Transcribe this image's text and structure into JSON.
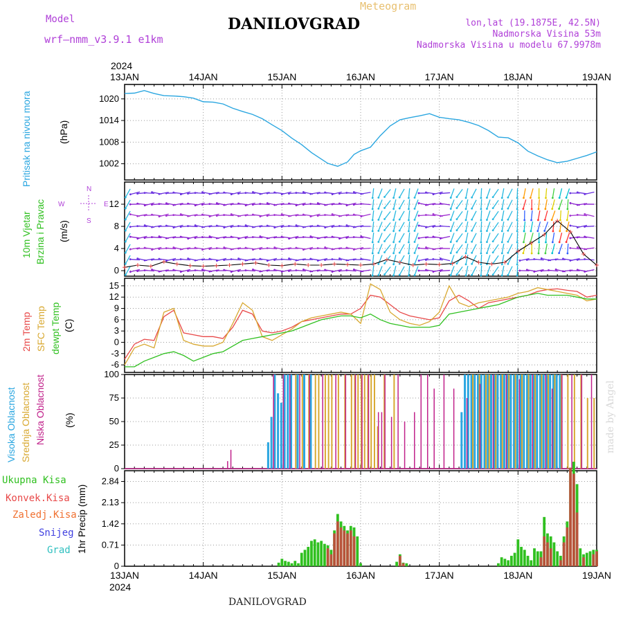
{
  "header": {
    "model_label": "Model",
    "model_name": "wrf–nmm_v3.9.1  e1km",
    "meteogram_label": "Meteogram",
    "location": "DANILOVGRAD",
    "lonlat": "lon,lat (19.1875E, 42.5N)",
    "elevation": "Nadmorska Visina 53m",
    "model_elevation": "Nadmorska Visina u modelu 67.9978m"
  },
  "date_axis": {
    "year": "2024",
    "labels": [
      "13JAN",
      "14JAN",
      "15JAN",
      "16JAN",
      "17JAN",
      "18JAN",
      "19JAN"
    ]
  },
  "footer": {
    "station": "DANILOVGRAD",
    "credit": "made by Angel"
  },
  "panels": {
    "pressure": {
      "title": "Pritisak na nivou mora",
      "unit": "(hPa)"
    },
    "wind": {
      "title1": "10m Vjetar",
      "title2": "Brzina i Pravac",
      "unit": "(m/s)",
      "compass": {
        "n": "N",
        "s": "S",
        "w": "W",
        "e": "E"
      }
    },
    "temp": {
      "label_2m": "2m Temp",
      "label_sfc": "SFC Temp",
      "label_dew": "dewpt Temp",
      "unit": "(C)"
    },
    "cloud": {
      "label_high": "Visoka Oblacnost",
      "label_mid": "Srednja Oblacnost",
      "label_low": "Niska Oblacnost",
      "unit": "(%)"
    },
    "precip": {
      "label_total": "Ukupna Kisa",
      "label_conv": "Konvek.Kisa",
      "label_frz": "Zaledj.Kisa",
      "label_snow": "Snijeg",
      "label_grad": "Grad",
      "ylabel": "1hr Precip (mm)"
    }
  },
  "colors": {
    "pressure": "#2aa6e0",
    "t2m": "#e84848",
    "tsfc": "#d8a830",
    "tdew": "#30c020",
    "cloud_high": "#2aa6e0",
    "cloud_mid": "#d8a830",
    "cloud_low": "#c0208a",
    "precip_total": "#30c020",
    "precip_conv": "#d04040"
  },
  "chart_data": [
    {
      "type": "line",
      "name": "Sea level pressure",
      "xlim": [
        0,
        144
      ],
      "ylim": [
        997.5,
        1024
      ],
      "yticks": [
        1002,
        1008,
        1014,
        1020
      ],
      "x": [
        0,
        3,
        6,
        9,
        12,
        15,
        18,
        21,
        24,
        27,
        30,
        33,
        36,
        39,
        42,
        45,
        48,
        51,
        54,
        57,
        60,
        62,
        65,
        68,
        70,
        72,
        75,
        78,
        81,
        84,
        87,
        90,
        93,
        96,
        99,
        102,
        105,
        108,
        111,
        114,
        117,
        120,
        123,
        126,
        129,
        132,
        135,
        138,
        141,
        144
      ],
      "values": [
        1021.5,
        1021.6,
        1022.3,
        1021.5,
        1020.9,
        1020.8,
        1020.6,
        1020.2,
        1019.2,
        1019.1,
        1018.6,
        1017.4,
        1016.5,
        1015.7,
        1014.5,
        1012.8,
        1011.2,
        1009.1,
        1007.3,
        1005.1,
        1003.3,
        1002.1,
        1001.3,
        1002.5,
        1004.6,
        1005.6,
        1006.6,
        1009.8,
        1012.5,
        1014.2,
        1014.8,
        1015.3,
        1015.9,
        1014.9,
        1014.5,
        1014.2,
        1013.5,
        1012.6,
        1011.2,
        1009.4,
        1009.2,
        1007.8,
        1005.5,
        1004.2,
        1003.1,
        1002.3,
        1002.7,
        1003.5,
        1004.3,
        1005.3
      ]
    },
    {
      "type": "line",
      "name": "10m wind speed",
      "xlim": [
        0,
        144
      ],
      "ylim": [
        -1,
        16
      ],
      "yticks": [
        0,
        4,
        8,
        12
      ],
      "x": [
        0,
        4,
        8,
        12,
        16,
        20,
        24,
        28,
        32,
        36,
        40,
        44,
        48,
        52,
        56,
        60,
        64,
        68,
        72,
        76,
        80,
        84,
        88,
        92,
        96,
        100,
        104,
        108,
        112,
        116,
        120,
        124,
        128,
        132,
        136,
        140,
        144
      ],
      "values": [
        0.6,
        1.0,
        0.8,
        1.6,
        1.2,
        0.9,
        0.8,
        0.9,
        1.0,
        1.2,
        1.4,
        1.0,
        0.9,
        1.2,
        1.0,
        1.0,
        1.2,
        1.1,
        1.0,
        1.2,
        2.0,
        1.5,
        1.0,
        1.2,
        1.1,
        1.3,
        2.5,
        1.5,
        1.2,
        1.5,
        3.5,
        5.0,
        6.5,
        9.0,
        7.0,
        3.0,
        1.0
      ]
    },
    {
      "type": "line",
      "name": "Temperature",
      "xlim": [
        0,
        144
      ],
      "ylim": [
        -8,
        17
      ],
      "yticks": [
        -6,
        -3,
        0,
        3,
        6,
        9,
        12,
        15
      ],
      "x": [
        0,
        3,
        6,
        9,
        12,
        15,
        18,
        21,
        24,
        27,
        30,
        33,
        36,
        39,
        42,
        45,
        48,
        51,
        54,
        57,
        60,
        63,
        66,
        69,
        72,
        75,
        78,
        81,
        84,
        87,
        90,
        93,
        96,
        99,
        102,
        105,
        108,
        111,
        114,
        117,
        120,
        123,
        126,
        129,
        132,
        135,
        138,
        141,
        144
      ],
      "series": [
        {
          "name": "2m Temp",
          "values": [
            -4.5,
            -0.5,
            0.8,
            0.5,
            6.8,
            8.5,
            2.5,
            2.0,
            1.5,
            1.5,
            1.0,
            4.0,
            8.5,
            7.5,
            3.0,
            2.5,
            3.0,
            4.0,
            5.5,
            6.0,
            6.5,
            7.0,
            7.5,
            7.5,
            9.0,
            12.5,
            12.0,
            10.0,
            8.0,
            7.0,
            6.5,
            6.0,
            6.5,
            11.0,
            12.5,
            11.0,
            9.0,
            10.5,
            11.0,
            11.5,
            12.0,
            12.5,
            13.5,
            14.0,
            14.2,
            13.8,
            13.5,
            12.0,
            12.5
          ]
        },
        {
          "name": "SFC Temp",
          "values": [
            -6.0,
            -1.5,
            -0.5,
            -1.5,
            8.0,
            9.0,
            0.5,
            -0.5,
            -1.0,
            -1.0,
            0.0,
            5.0,
            10.5,
            8.5,
            1.5,
            0.5,
            2.0,
            3.5,
            5.5,
            6.5,
            7.0,
            7.5,
            8.0,
            7.5,
            5.0,
            15.5,
            14.0,
            8.0,
            6.0,
            5.0,
            4.5,
            5.5,
            8.0,
            15.0,
            10.5,
            9.5,
            10.5,
            11.0,
            11.5,
            12.0,
            13.0,
            13.5,
            14.5,
            14.0,
            13.5,
            13.0,
            12.5,
            11.0,
            11.5
          ]
        },
        {
          "name": "dewpt Temp",
          "values": [
            -6.5,
            -6.5,
            -5.0,
            -4.0,
            -3.0,
            -2.5,
            -3.5,
            -5.0,
            -4.0,
            -3.0,
            -2.5,
            -1.0,
            0.5,
            1.0,
            1.5,
            2.0,
            2.5,
            3.0,
            4.0,
            5.0,
            6.0,
            6.5,
            7.0,
            7.0,
            6.5,
            7.5,
            6.0,
            5.0,
            4.5,
            4.0,
            4.0,
            4.0,
            4.5,
            7.5,
            8.0,
            8.5,
            9.0,
            9.5,
            10.0,
            11.0,
            12.0,
            12.5,
            13.0,
            12.5,
            12.5,
            12.5,
            12.0,
            11.5,
            11.5
          ]
        }
      ]
    },
    {
      "type": "bar",
      "name": "Cloud cover",
      "xlim": [
        0,
        144
      ],
      "ylim": [
        0,
        100
      ],
      "yticks": [
        0,
        25,
        50,
        75,
        100
      ],
      "series": [
        {
          "name": "Visoka Oblacnost",
          "x": [
            44,
            45,
            46,
            47,
            48,
            49,
            50,
            51,
            53,
            55,
            57,
            103,
            104,
            105,
            106,
            107,
            108,
            109,
            110,
            111,
            112,
            113,
            114,
            115,
            116,
            117,
            118,
            119,
            120,
            121,
            122,
            123,
            124,
            125,
            126,
            127,
            128,
            129,
            130,
            131,
            132,
            133
          ],
          "values": [
            28,
            55,
            100,
            80,
            70,
            100,
            100,
            100,
            100,
            100,
            100,
            60,
            100,
            100,
            100,
            100,
            100,
            100,
            100,
            100,
            100,
            100,
            100,
            100,
            100,
            100,
            100,
            100,
            100,
            100,
            100,
            100,
            100,
            100,
            100,
            100,
            100,
            100,
            100,
            100,
            100,
            100
          ]
        },
        {
          "name": "Srednja Oblacnost",
          "x": [
            52,
            54,
            56,
            58,
            59,
            61,
            62,
            63,
            65,
            67,
            69,
            70,
            71,
            72,
            73,
            74,
            75,
            76,
            77,
            79,
            82,
            106,
            108,
            110,
            111,
            113,
            115,
            117,
            119,
            121,
            123,
            125,
            127,
            129,
            131,
            133,
            135,
            137,
            139,
            141,
            143
          ],
          "values": [
            100,
            100,
            100,
            100,
            100,
            100,
            100,
            100,
            100,
            100,
            100,
            100,
            100,
            100,
            100,
            100,
            100,
            100,
            45,
            100,
            100,
            100,
            100,
            100,
            100,
            100,
            100,
            100,
            100,
            100,
            100,
            100,
            100,
            100,
            100,
            100,
            100,
            100,
            100,
            75,
            75
          ]
        },
        {
          "name": "Niska Oblacnost",
          "x": [
            31,
            32,
            45,
            48,
            50,
            53,
            56,
            60,
            64,
            67,
            70,
            72,
            74,
            77,
            78,
            79,
            81,
            83,
            85,
            88,
            90,
            92,
            94,
            97,
            100,
            104,
            108,
            112,
            116,
            120,
            124,
            128,
            130,
            133,
            136,
            139,
            142
          ],
          "values": [
            8,
            20,
            100,
            100,
            100,
            100,
            100,
            100,
            100,
            100,
            100,
            100,
            100,
            60,
            60,
            100,
            55,
            100,
            50,
            60,
            100,
            100,
            85,
            100,
            85,
            75,
            90,
            100,
            100,
            95,
            100,
            100,
            85,
            100,
            100,
            100,
            100
          ]
        }
      ]
    },
    {
      "type": "bar",
      "name": "1hr Precip",
      "xlim": [
        0,
        144
      ],
      "ylim": [
        0,
        3.2
      ],
      "yticks": [
        0,
        0.71,
        1.42,
        2.13,
        2.84
      ],
      "series": [
        {
          "name": "Ukupna Kisa",
          "x": [
            47,
            48,
            49,
            50,
            51,
            52,
            53,
            54,
            55,
            56,
            57,
            58,
            59,
            60,
            61,
            62,
            63,
            64,
            65,
            66,
            67,
            68,
            69,
            70,
            71,
            72,
            83,
            84,
            85,
            86,
            114,
            115,
            116,
            117,
            118,
            119,
            120,
            121,
            122,
            123,
            124,
            125,
            126,
            127,
            128,
            129,
            130,
            131,
            132,
            133,
            134,
            135,
            136,
            137,
            138,
            139,
            140,
            141,
            142,
            143,
            144
          ],
          "values": [
            0.12,
            0.25,
            0.18,
            0.15,
            0.1,
            0.18,
            0.1,
            0.45,
            0.55,
            0.65,
            0.85,
            0.9,
            0.8,
            0.85,
            0.75,
            0.7,
            0.55,
            1.2,
            1.75,
            1.5,
            1.35,
            1.2,
            1.35,
            1.3,
            1.0,
            0.1,
            0.15,
            0.4,
            0.12,
            0.1,
            0.1,
            0.3,
            0.25,
            0.2,
            0.35,
            0.45,
            0.9,
            0.65,
            0.55,
            0.35,
            0.2,
            0.6,
            0.5,
            0.5,
            1.65,
            1.1,
            1.0,
            0.8,
            0.5,
            0.35,
            1.0,
            1.5,
            3.3,
            3.5,
            2.75,
            0.6,
            0.4,
            0.45,
            0.5,
            0.55,
            0.55
          ]
        },
        {
          "name": "Konvek.Kisa",
          "x": [
            62,
            63,
            64,
            65,
            66,
            67,
            68,
            69,
            70,
            84,
            85,
            127,
            128,
            129,
            130,
            133,
            134,
            135,
            136,
            137,
            138,
            140,
            143,
            144
          ],
          "values": [
            0.6,
            0.4,
            1.1,
            1.5,
            1.3,
            1.2,
            1.1,
            1.2,
            1.0,
            0.35,
            0.1,
            0.3,
            1.0,
            0.8,
            0.6,
            0.2,
            0.8,
            1.3,
            3.3,
            3.1,
            1.8,
            0.3,
            0.4,
            0.5
          ]
        }
      ]
    }
  ]
}
